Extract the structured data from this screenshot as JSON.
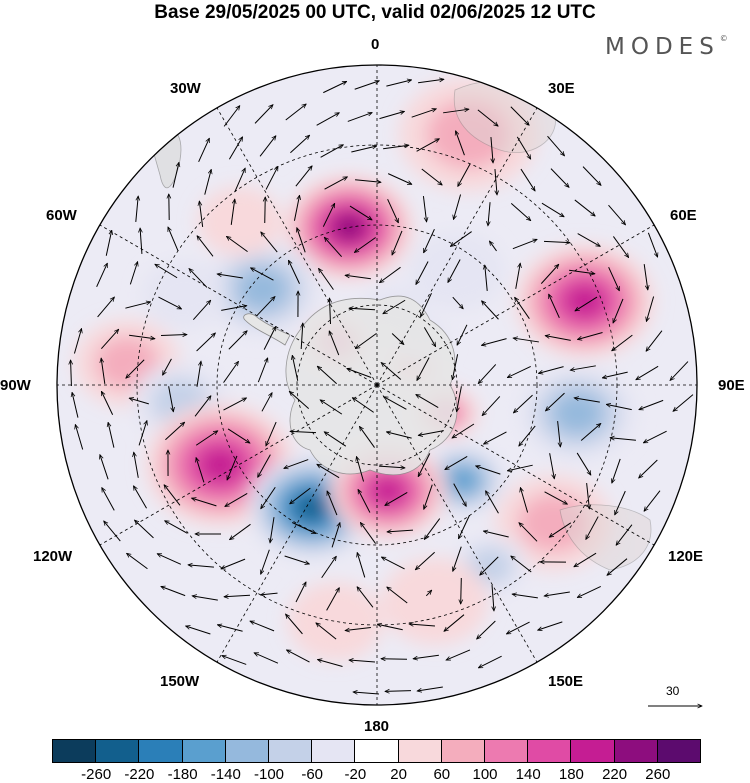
{
  "title": "Base 29/05/2025 00 UTC, valid 02/06/2025 12 UTC",
  "logo": "MODES",
  "logo_mark": "©",
  "meridian_labels": {
    "m0": "0",
    "m30e": "30E",
    "m60e": "60E",
    "m90e": "90E",
    "m120e": "120E",
    "m150e": "150E",
    "m180": "180",
    "m150w": "150W",
    "m120w": "120W",
    "m90w": "90W",
    "m60w": "60W",
    "m30w": "30W"
  },
  "vector_scale": "30",
  "colorbar": {
    "colors": [
      "#0c3c5c",
      "#125f8d",
      "#2b7fb8",
      "#5a9fcf",
      "#95b9dd",
      "#c4d1e8",
      "#e5e5f3",
      "#ffffff",
      "#f8d9dc",
      "#f4adbd",
      "#ed7ab0",
      "#e04ba5",
      "#c51d93",
      "#8d0d7e",
      "#5c0b6e"
    ],
    "labels": [
      "-260",
      "-220",
      "-180",
      "-140",
      "-100",
      "-60",
      "-20",
      "20",
      "60",
      "100",
      "140",
      "180",
      "220",
      "260"
    ]
  },
  "anomalies": [
    {
      "lon": 20,
      "colat": 50,
      "r": 13,
      "v": 80
    },
    {
      "lon": -10,
      "colat": 30,
      "r": 12,
      "v": 250
    },
    {
      "lon": 35,
      "colat": 26,
      "r": 9,
      "v": -60
    },
    {
      "lon": -50,
      "colat": 28,
      "r": 11,
      "v": -150
    },
    {
      "lon": -85,
      "colat": 47,
      "r": 10,
      "v": 80
    },
    {
      "lon": -95,
      "colat": 37,
      "r": 9,
      "v": -100
    },
    {
      "lon": 68,
      "colat": 42,
      "r": 13,
      "v": 210
    },
    {
      "lon": 98,
      "colat": 38,
      "r": 11,
      "v": -120
    },
    {
      "lon": 128,
      "colat": 42,
      "r": 11,
      "v": 80
    },
    {
      "lon": 148,
      "colat": 40,
      "r": 7,
      "v": -100
    },
    {
      "lon": 138,
      "colat": 24,
      "r": 8,
      "v": -170
    },
    {
      "lon": 112,
      "colat": 14,
      "r": 6,
      "v": 150
    },
    {
      "lon": 60,
      "colat": 8,
      "r": 5,
      "v": 110
    },
    {
      "lon": -117,
      "colat": 33,
      "r": 14,
      "v": 210
    },
    {
      "lon": -152,
      "colat": 26,
      "r": 12,
      "v": -260
    },
    {
      "lon": 174,
      "colat": 20,
      "r": 11,
      "v": 200
    },
    {
      "lon": -43,
      "colat": 11,
      "r": 6,
      "v": 140
    },
    {
      "lon": -40,
      "colat": 40,
      "r": 8,
      "v": 60
    },
    {
      "lon": -65,
      "colat": 40,
      "r": 8,
      "v": -60
    },
    {
      "lon": 45,
      "colat": 12,
      "r": 5,
      "v": -40
    },
    {
      "lon": 12,
      "colat": 14,
      "r": 6,
      "v": -30
    },
    {
      "lon": 165,
      "colat": 42,
      "r": 10,
      "v": 60
    },
    {
      "lon": -170,
      "colat": 45,
      "r": 9,
      "v": 40
    }
  ]
}
